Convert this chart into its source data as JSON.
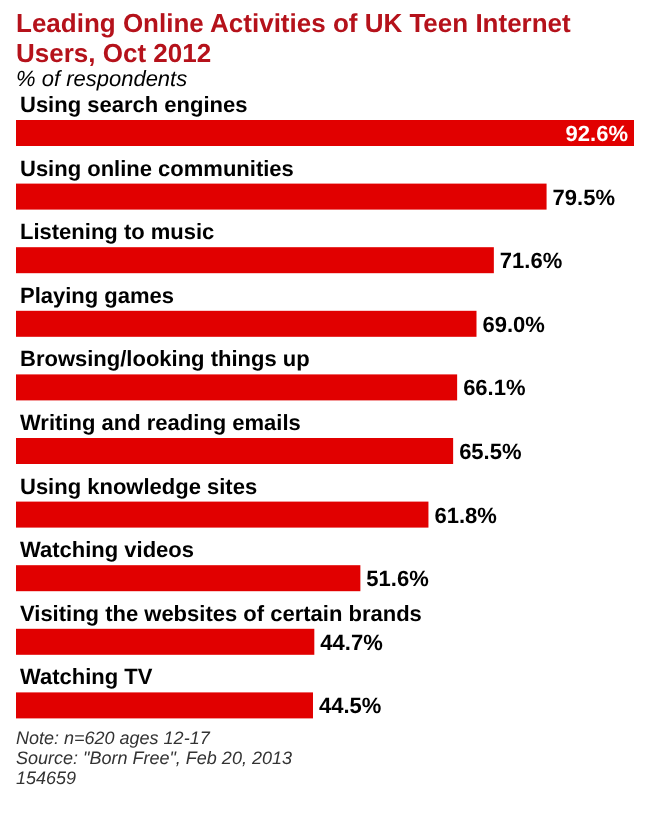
{
  "chart_data": {
    "type": "bar",
    "orientation": "horizontal",
    "title": "Leading Online Activities of UK Teen Internet Users, Oct 2012",
    "subtitle": "% of respondents",
    "categories": [
      "Using search engines",
      "Using online communities",
      "Listening to music",
      "Playing games",
      "Browsing/looking things up",
      "Writing and reading emails",
      "Using knowledge sites",
      "Watching videos",
      "Visiting the websites of certain brands",
      "Watching TV"
    ],
    "values": [
      92.6,
      79.5,
      71.6,
      69.0,
      66.1,
      65.5,
      61.8,
      51.6,
      44.7,
      44.5
    ],
    "value_labels": [
      "92.6%",
      "79.5%",
      "71.6%",
      "69.0%",
      "66.1%",
      "65.5%",
      "61.8%",
      "51.6%",
      "44.7%",
      "44.5%"
    ],
    "color": "#e10000",
    "annotations": [
      "Note: n=620 ages 12-17",
      "Source: \"Born Free\", Feb 20, 2013",
      "154659"
    ]
  }
}
